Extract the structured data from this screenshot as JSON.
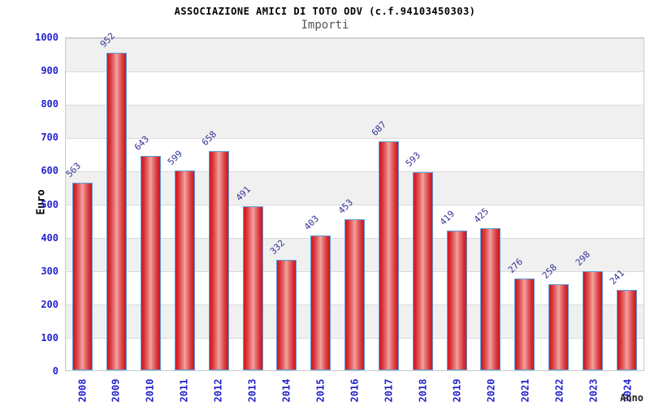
{
  "header": {
    "title": "ASSOCIAZIONE AMICI DI TOTO ODV (c.f.94103450303)",
    "subtitle": "Importi"
  },
  "chart_data": {
    "type": "bar",
    "title": "ASSOCIAZIONE AMICI DI TOTO ODV (c.f.94103450303)",
    "subtitle": "Importi",
    "xlabel": "Anno",
    "ylabel": "Euro",
    "categories": [
      "2008",
      "2009",
      "2010",
      "2011",
      "2012",
      "2013",
      "2014",
      "2015",
      "2016",
      "2017",
      "2018",
      "2019",
      "2020",
      "2021",
      "2022",
      "2023",
      "2024"
    ],
    "values": [
      563,
      952,
      643,
      599,
      658,
      491,
      332,
      403,
      453,
      687,
      593,
      419,
      425,
      276,
      258,
      298,
      241
    ],
    "ylim": [
      0,
      1000
    ],
    "ytick_step": 100,
    "yticks": [
      0,
      100,
      200,
      300,
      400,
      500,
      600,
      700,
      800,
      900,
      1000
    ],
    "grid": "horizontal-bands",
    "legend_position": "none"
  },
  "colors": {
    "bar_fill_edge": "#cf1226",
    "bar_fill_center": "#f2a5a5",
    "bar_border": "#5b9fd6",
    "tick_label": "#2323cc",
    "value_label": "#333399",
    "title": "#000000",
    "subtitle": "#555555",
    "band_gray": "#f0f0f0",
    "band_white": "#ffffff",
    "plot_border": "#c9c9c9"
  }
}
